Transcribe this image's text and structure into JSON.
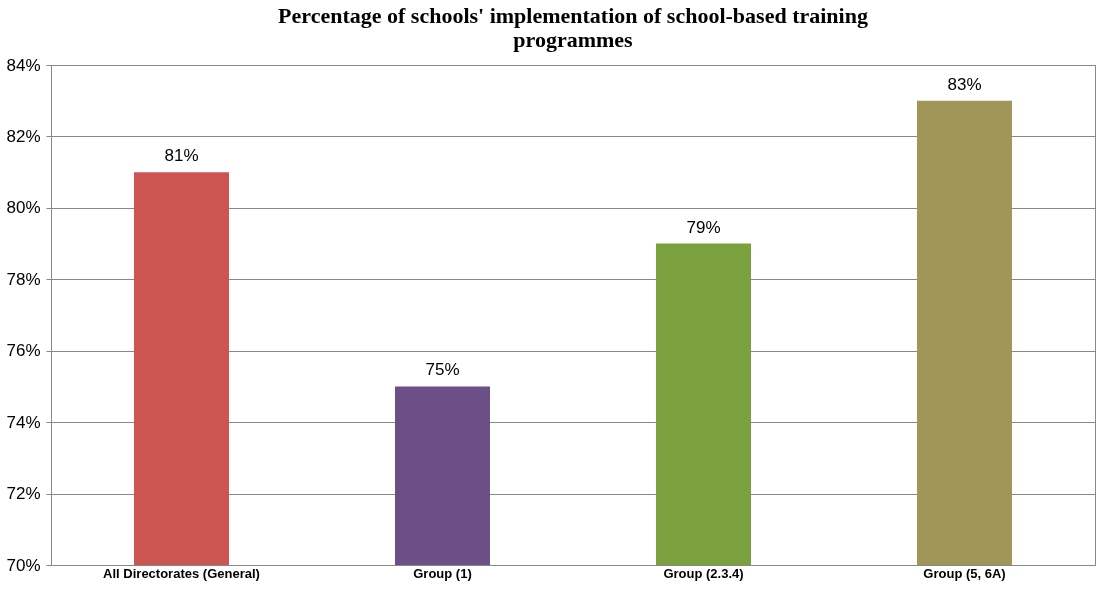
{
  "chart_data": {
    "type": "bar",
    "title": "Percentage of schools' implementation of school-based training programmes",
    "categories": [
      "All Directorates (General)",
      "Group (1)",
      "Group (2.3.4)",
      "Group (5, 6A)"
    ],
    "values": [
      81,
      75,
      79,
      83
    ],
    "colors": [
      "#cd5551",
      "#6b4f86",
      "#7ba13f",
      "#a09658"
    ],
    "value_labels": [
      "81%",
      "75%",
      "79%",
      "83%"
    ],
    "ylim": [
      70,
      84
    ],
    "yticks": [
      {
        "value": 70,
        "label": "70%"
      },
      {
        "value": 72,
        "label": "72%"
      },
      {
        "value": 74,
        "label": "74%"
      },
      {
        "value": 76,
        "label": "76%"
      },
      {
        "value": 78,
        "label": "78%"
      },
      {
        "value": 80,
        "label": "80%"
      },
      {
        "value": 82,
        "label": "82%"
      },
      {
        "value": 84,
        "label": "84%"
      }
    ],
    "grid": "y"
  }
}
